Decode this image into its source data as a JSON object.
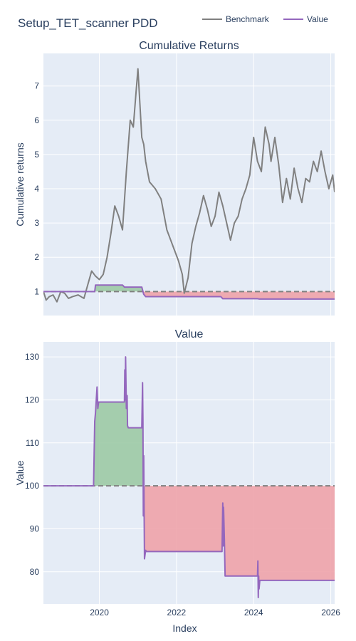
{
  "title": "Setup_TET_scanner PDD",
  "legend": [
    {
      "name": "Benchmark",
      "color": "#808080"
    },
    {
      "name": "Value",
      "color": "#9467bd"
    }
  ],
  "colors": {
    "plot_bg": "#e5ecf6",
    "grid": "#ffffff",
    "gain_fill": "#9ccaa5",
    "loss_fill": "#eea3aa",
    "baseline": "#808080",
    "text": "#2a3f5f"
  },
  "chart_data": [
    {
      "type": "line",
      "title": "Cumulative Returns",
      "ylabel": "Cumulative returns",
      "xlabel": "",
      "xlim": [
        2018.55,
        2026.1
      ],
      "ylim": [
        0.3,
        7.95
      ],
      "yticks": [
        1,
        2,
        3,
        4,
        5,
        6,
        7
      ],
      "xticks": [
        2020,
        2022,
        2024,
        2026
      ],
      "xtick_labels": [
        "",
        "",
        "",
        ""
      ],
      "baseline": 1,
      "series": [
        {
          "name": "Benchmark",
          "x": [
            2018.55,
            2018.62,
            2018.7,
            2018.8,
            2018.9,
            2019.0,
            2019.1,
            2019.2,
            2019.3,
            2019.45,
            2019.6,
            2019.7,
            2019.8,
            2019.9,
            2020.0,
            2020.1,
            2020.2,
            2020.3,
            2020.4,
            2020.5,
            2020.6,
            2020.7,
            2020.8,
            2020.88,
            2020.95,
            2021.0,
            2021.05,
            2021.1,
            2021.15,
            2021.2,
            2021.3,
            2021.45,
            2021.6,
            2021.75,
            2021.85,
            2021.95,
            2022.05,
            2022.15,
            2022.2,
            2022.3,
            2022.4,
            2022.5,
            2022.6,
            2022.7,
            2022.8,
            2022.9,
            2023.0,
            2023.1,
            2023.2,
            2023.3,
            2023.4,
            2023.5,
            2023.6,
            2023.7,
            2023.8,
            2023.9,
            2024.0,
            2024.1,
            2024.2,
            2024.3,
            2024.4,
            2024.45,
            2024.55,
            2024.65,
            2024.75,
            2024.85,
            2024.95,
            2025.05,
            2025.15,
            2025.25,
            2025.35,
            2025.45,
            2025.55,
            2025.65,
            2025.75,
            2025.85,
            2025.95,
            2026.05,
            2026.1
          ],
          "y": [
            1.0,
            0.75,
            0.85,
            0.9,
            0.7,
            1.0,
            0.95,
            0.8,
            0.85,
            0.9,
            0.8,
            1.2,
            1.6,
            1.45,
            1.35,
            1.5,
            2.0,
            2.7,
            3.5,
            3.2,
            2.8,
            4.5,
            6.0,
            5.8,
            6.8,
            7.5,
            6.5,
            5.5,
            5.3,
            4.8,
            4.2,
            4.0,
            3.7,
            2.8,
            2.5,
            2.2,
            1.9,
            1.5,
            0.95,
            1.4,
            2.4,
            2.9,
            3.3,
            3.8,
            3.4,
            2.9,
            3.2,
            3.9,
            3.5,
            3.0,
            2.5,
            3.0,
            3.2,
            3.7,
            4.0,
            4.4,
            5.5,
            4.8,
            4.5,
            5.8,
            5.3,
            4.8,
            5.5,
            4.7,
            3.6,
            4.3,
            3.7,
            4.6,
            4.0,
            3.6,
            4.3,
            4.2,
            4.8,
            4.5,
            5.1,
            4.5,
            4.0,
            4.4,
            3.9
          ]
        },
        {
          "name": "Value",
          "x": [
            2018.55,
            2019.88,
            2019.9,
            2020.6,
            2020.65,
            2021.1,
            2021.15,
            2021.2,
            2023.15,
            2023.2,
            2024.1,
            2024.15,
            2026.1
          ],
          "y": [
            1.0,
            1.0,
            1.19,
            1.19,
            1.13,
            1.13,
            0.92,
            0.85,
            0.85,
            0.79,
            0.79,
            0.78,
            0.78
          ]
        }
      ]
    },
    {
      "type": "line",
      "title": "Value",
      "ylabel": "Value",
      "xlabel": "Index",
      "xlim": [
        2018.55,
        2026.1
      ],
      "ylim": [
        72.5,
        133.5
      ],
      "yticks": [
        80,
        90,
        100,
        110,
        120,
        130
      ],
      "xticks": [
        2020,
        2022,
        2024,
        2026
      ],
      "xtick_labels": [
        "2020",
        "2022",
        "2024",
        "2026"
      ],
      "baseline": 100,
      "series": [
        {
          "name": "Value",
          "x": [
            2018.55,
            2019.85,
            2019.88,
            2019.9,
            2019.92,
            2019.94,
            2019.96,
            2019.98,
            2020.0,
            2020.65,
            2020.66,
            2020.67,
            2020.68,
            2020.7,
            2020.72,
            2020.73,
            2020.75,
            2020.77,
            2021.1,
            2021.12,
            2021.13,
            2021.14,
            2021.15,
            2021.17,
            2021.2,
            2021.22,
            2021.24,
            2023.18,
            2023.2,
            2023.21,
            2023.22,
            2023.24,
            2023.26,
            2024.1,
            2024.11,
            2024.12,
            2024.13,
            2024.14,
            2024.16,
            2024.18,
            2026.1
          ],
          "y": [
            100,
            100,
            115,
            117,
            120,
            123,
            118,
            119.5,
            119.5,
            119.5,
            127,
            120,
            130,
            118,
            121,
            114,
            113.5,
            113.5,
            113.5,
            124,
            115,
            93,
            107,
            83,
            85,
            84.7,
            84.7,
            84.7,
            96,
            86,
            95,
            88,
            79,
            79,
            82.5,
            74,
            79,
            76,
            78,
            78,
            78
          ]
        }
      ]
    }
  ]
}
